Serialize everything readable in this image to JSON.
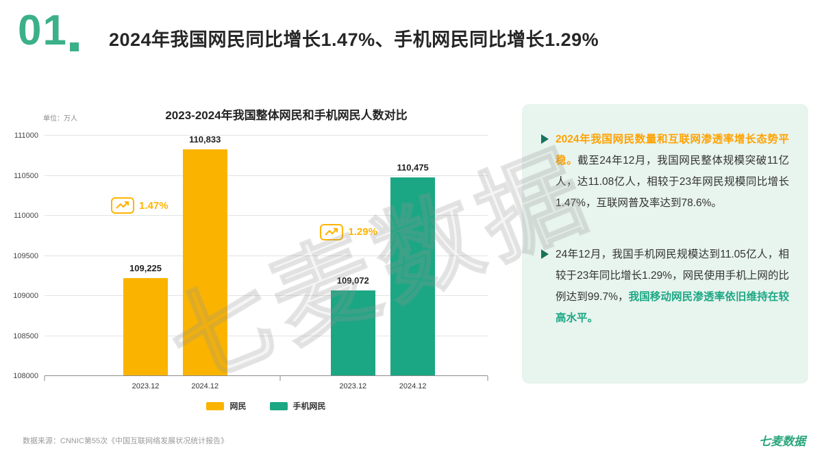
{
  "header": {
    "section_number": "01",
    "title": "2024年我国网民同比增长1.47%、手机网民同比增长1.29%"
  },
  "chart_data": {
    "type": "bar",
    "title": "2023-2024年我国整体网民和手机网民人数对比",
    "unit_label": "单位：万人",
    "categories": [
      "2023.12",
      "2024.12"
    ],
    "series": [
      {
        "name": "网民",
        "color": "#FAB400",
        "values": [
          109225,
          110833
        ],
        "value_labels": [
          "109,225",
          "110,833"
        ],
        "growth": "1.47%",
        "badge_color": "#FFB400"
      },
      {
        "name": "手机网民",
        "color": "#1BA784",
        "values": [
          109072,
          110475
        ],
        "value_labels": [
          "109,072",
          "110,475"
        ],
        "growth": "1.29%",
        "badge_color": "#FFB400"
      }
    ],
    "ylim": [
      108000,
      111000
    ],
    "yticks": [
      108000,
      108500,
      109000,
      109500,
      110000,
      110500,
      111000
    ],
    "grid": true,
    "legend_position": "bottom"
  },
  "panel": {
    "bullets": [
      {
        "highlight": "2024年我国网民数量和互联网渗透率增长态势平稳。",
        "rest": "截至24年12月，我国网民整体规模突破11亿人，达11.08亿人，相较于23年网民规模同比增长1.47%，互联网普及率达到78.6%。"
      },
      {
        "lead": "24年12月，我国手机网民规模达到11.05亿人，相较于23年同比增长1.29%，网民使用手机上网的比例达到99.7%，",
        "highlight": "我国移动网民渗透率依旧维持在较高水平。"
      }
    ]
  },
  "footer": {
    "source": "数据来源：CNNIC第55次《中国互联网络发展状况统计报告》",
    "brand": "七麦数据"
  },
  "watermark": "七麦数据",
  "colors": {
    "accent_green": "#2FA883",
    "accent_yellow": "#FFB400",
    "panel_bg": "#E8F4EE"
  }
}
